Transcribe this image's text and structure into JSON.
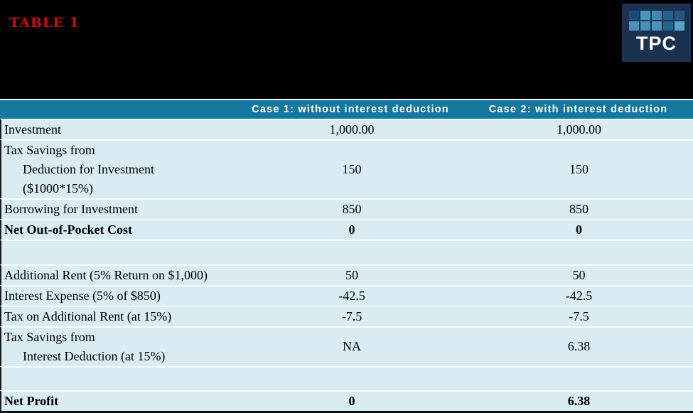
{
  "header": {
    "table_label": "TABLE 1"
  },
  "logo": {
    "text": "TPC",
    "bg": "#1b3150",
    "squares": [
      [
        "#1e4974",
        "#4a94bc",
        "#3c89b3",
        "#27608d",
        "#235a84"
      ],
      [
        "#4a94bc",
        "#4590b8",
        "#4a94bc",
        "#1d648f",
        "#57a3c8"
      ]
    ]
  },
  "colors": {
    "banner_bg": "#000000",
    "accent_red": "#cc0a10",
    "header_bg": "#1478a1",
    "header_text": "#ffffff",
    "body_bg": "#d9ecf4",
    "row_separator": "#fbfdfe",
    "bottom_border": "#0a0f14"
  },
  "table": {
    "header": {
      "label": "",
      "col1": "Case 1: without interest deduction",
      "col2": "Case 2: with interest deduction"
    },
    "rows": [
      {
        "label_lines": [
          "Investment"
        ],
        "col1": "1,000.00",
        "col2": "1,000.00",
        "bold": false,
        "empty": false
      },
      {
        "label_lines": [
          "Tax Savings from",
          "Deduction for Investment",
          "($1000*15%)"
        ],
        "col1": "150",
        "col2": "150",
        "bold": false,
        "empty": false
      },
      {
        "label_lines": [
          "Borrowing for Investment"
        ],
        "col1": "850",
        "col2": "850",
        "bold": false,
        "empty": false
      },
      {
        "label_lines": [
          "Net Out-of-Pocket Cost"
        ],
        "col1": "0",
        "col2": "0",
        "bold": true,
        "empty": false
      },
      {
        "label_lines": [],
        "col1": "",
        "col2": "",
        "bold": false,
        "empty": true
      },
      {
        "label_lines": [
          "Additional Rent (5% Return on $1,000)"
        ],
        "col1": "50",
        "col2": "50",
        "bold": false,
        "empty": false
      },
      {
        "label_lines": [
          "Interest Expense (5% of $850)"
        ],
        "col1": "-42.5",
        "col2": "-42.5",
        "bold": false,
        "empty": false
      },
      {
        "label_lines": [
          "Tax on Additional Rent (at 15%)"
        ],
        "col1": "-7.5",
        "col2": "-7.5",
        "bold": false,
        "empty": false
      },
      {
        "label_lines": [
          "Tax Savings from",
          "Interest Deduction (at 15%)"
        ],
        "col1": "NA",
        "col2": "6.38",
        "bold": false,
        "empty": false
      },
      {
        "label_lines": [],
        "col1": "",
        "col2": "",
        "bold": false,
        "empty": true
      },
      {
        "label_lines": [
          "Net Profit"
        ],
        "col1": "0",
        "col2": "6.38",
        "bold": true,
        "empty": false
      }
    ]
  },
  "chart_data": {
    "type": "table",
    "title": "TABLE 1",
    "columns": [
      "",
      "Case 1: without interest deduction",
      "Case 2: with interest deduction"
    ],
    "rows": [
      [
        "Investment",
        "1,000.00",
        "1,000.00"
      ],
      [
        "Tax Savings from Deduction for Investment ($1000*15%)",
        "150",
        "150"
      ],
      [
        "Borrowing for Investment",
        "850",
        "850"
      ],
      [
        "Net Out-of-Pocket Cost",
        "0",
        "0"
      ],
      [
        "",
        "",
        ""
      ],
      [
        "Additional Rent (5% Return on $1,000)",
        "50",
        "50"
      ],
      [
        "Interest Expense (5% of $850)",
        "-42.5",
        "-42.5"
      ],
      [
        "Tax on Additional Rent (at 15%)",
        "-7.5",
        "-7.5"
      ],
      [
        "Tax Savings from Interest Deduction (at 15%)",
        "NA",
        "6.38"
      ],
      [
        "",
        "",
        ""
      ],
      [
        "Net Profit",
        "0",
        "6.38"
      ]
    ]
  }
}
